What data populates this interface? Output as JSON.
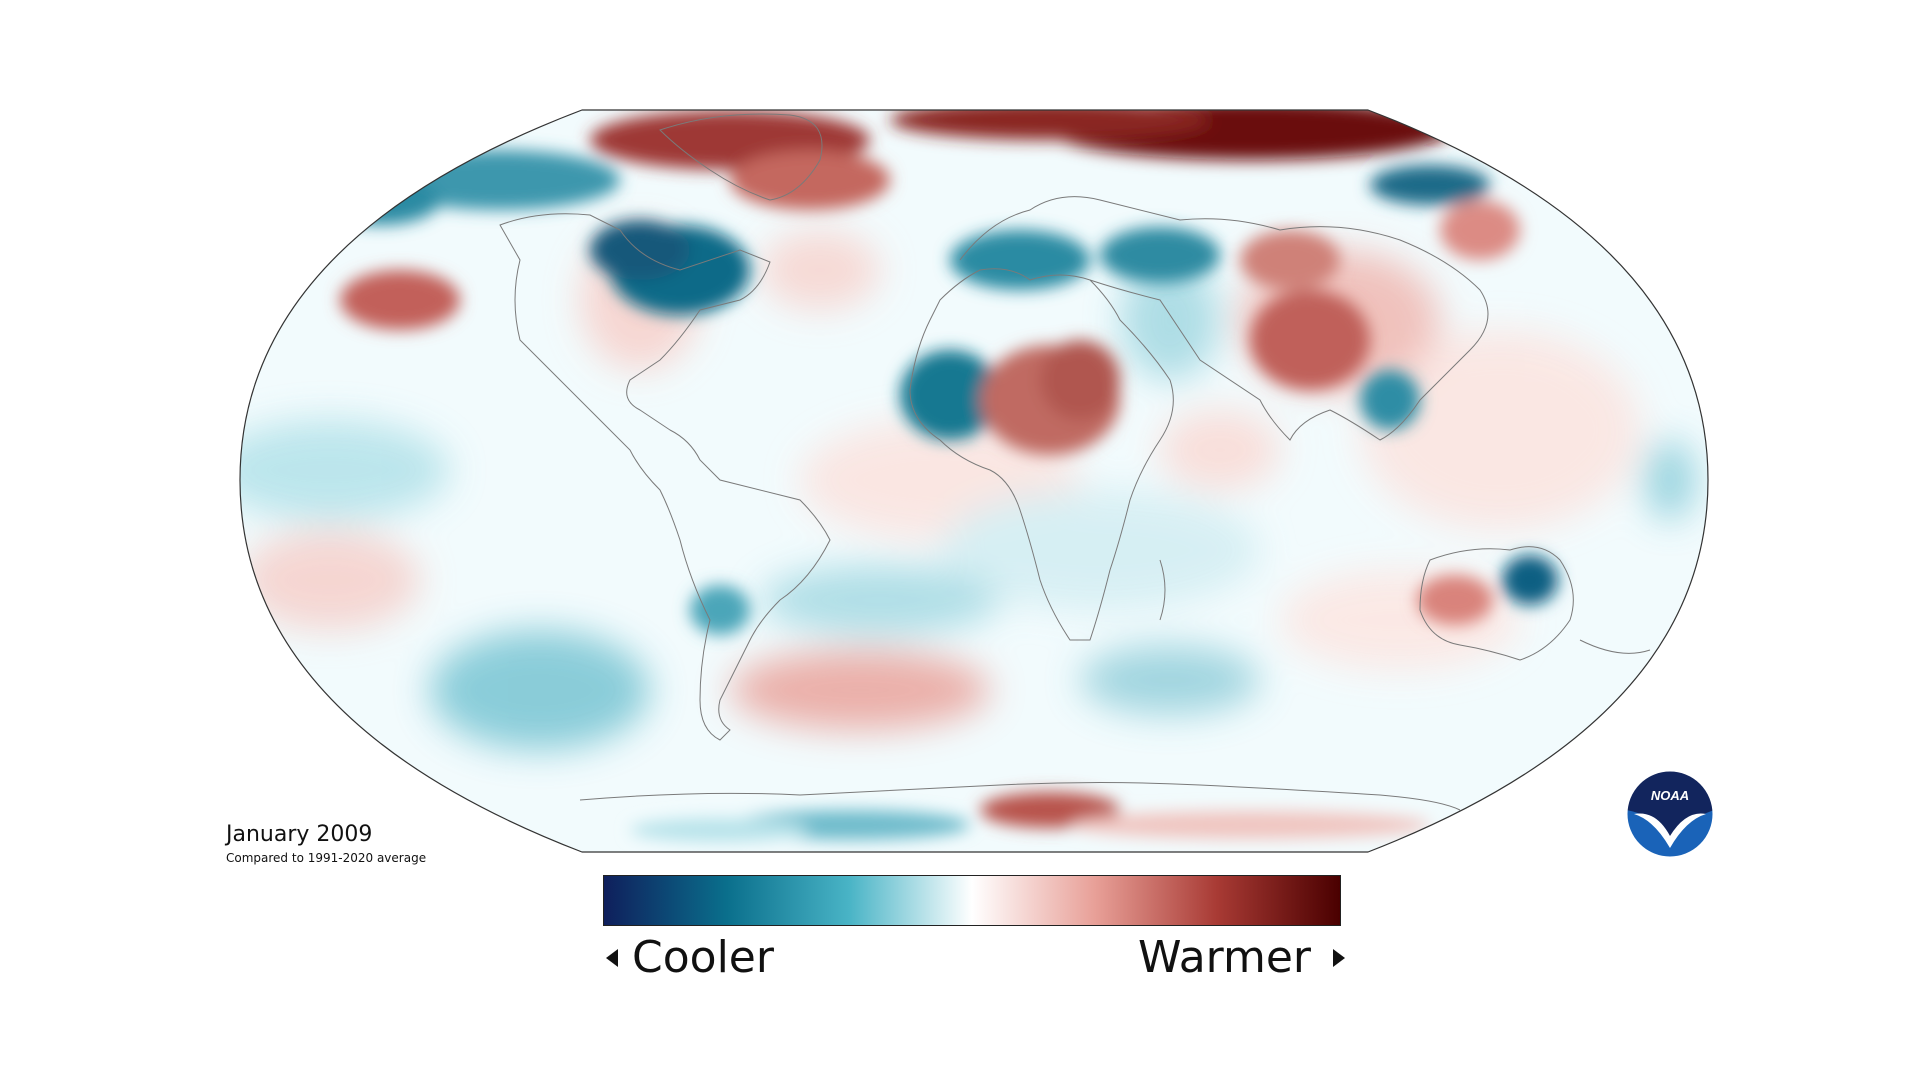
{
  "map": {
    "title": "January 2009",
    "subtitle": "Compared to 1991-2020 average",
    "projection": "robinson",
    "colors": {
      "cold_dark": "#0f1f5c",
      "cold": "#0a6f8c",
      "cool": "#49b4c6",
      "neutral": "#ffffff",
      "warm": "#e8a098",
      "hot": "#a83a34",
      "hot_dark": "#4a0000"
    }
  },
  "legend": {
    "cooler_label": "Cooler",
    "warmer_label": "Warmer"
  },
  "logo": {
    "text": "NOAA",
    "name": "noaa-logo"
  }
}
